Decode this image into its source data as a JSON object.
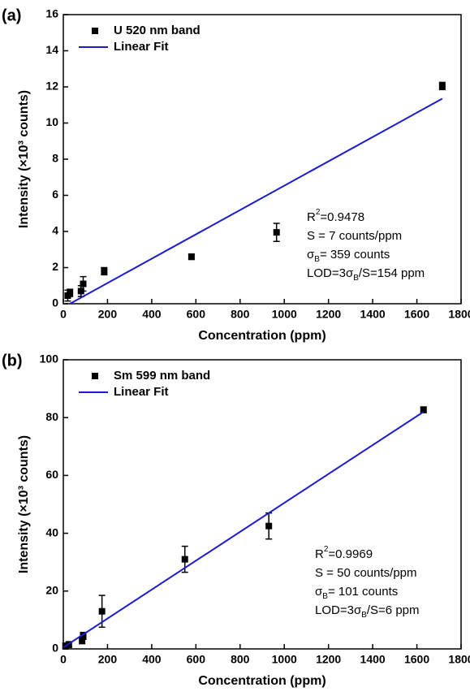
{
  "chart_data": [
    {
      "type": "scatter",
      "panel_label": "(a)",
      "xlabel": "Concentration (ppm)",
      "ylabel": "Intensity (×10³ counts)",
      "xlim": [
        0,
        1800
      ],
      "xticks": [
        0,
        200,
        400,
        600,
        800,
        1000,
        1200,
        1400,
        1600,
        1800
      ],
      "ylim": [
        0,
        16
      ],
      "yticks": [
        0,
        2,
        4,
        6,
        8,
        10,
        12,
        14,
        16
      ],
      "series": [
        {
          "name": "U 520 nm band",
          "color": "#000000",
          "x": [
            20,
            30,
            80,
            90,
            185,
            580,
            965,
            1715
          ],
          "values": [
            0.45,
            0.6,
            0.7,
            1.1,
            1.8,
            2.6,
            3.95,
            12.05
          ],
          "errors": [
            0.3,
            0.2,
            0.3,
            0.4,
            0.2,
            0.15,
            0.5,
            0.2
          ]
        },
        {
          "name": "Linear Fit",
          "type": "line",
          "color": "#1c1ccc",
          "x": [
            30,
            1715
          ],
          "values": [
            0,
            11.35
          ]
        }
      ],
      "annotations": [
        [
          "R",
          "2",
          "=0.9478"
        ],
        [
          "S = 7 counts/ppm"
        ],
        [
          "σ",
          "B",
          "= 359 counts"
        ],
        [
          "LOD=3σ",
          "B",
          "/S=154 ppm"
        ]
      ]
    },
    {
      "type": "scatter",
      "panel_label": "(b)",
      "xlabel": "Concentration (ppm)",
      "ylabel": "Intensity (×10³ counts)",
      "xlim": [
        0,
        1800
      ],
      "xticks": [
        0,
        200,
        400,
        600,
        800,
        1000,
        1200,
        1400,
        1600,
        1800
      ],
      "ylim": [
        0,
        100
      ],
      "yticks": [
        0,
        20,
        40,
        60,
        80,
        100
      ],
      "series": [
        {
          "name": "Sm 599 nm band",
          "color": "#000000",
          "x": [
            10,
            25,
            85,
            90,
            175,
            550,
            930,
            1630
          ],
          "values": [
            1,
            1.5,
            3,
            4.5,
            13,
            31,
            42.5,
            82.7
          ],
          "errors": [
            1,
            1,
            1.2,
            1.2,
            5.5,
            4.5,
            4.5,
            1
          ]
        },
        {
          "name": "Linear Fit",
          "type": "line",
          "color": "#1c1ccc",
          "x": [
            0,
            1630
          ],
          "values": [
            0.5,
            82
          ]
        }
      ],
      "annotations": [
        [
          "R",
          "2",
          "=0.9969"
        ],
        [
          "S = 50 counts/ppm"
        ],
        [
          "σ",
          "B",
          "= 101 counts"
        ],
        [
          "LOD=3σ",
          "B",
          "/S=6 ppm"
        ]
      ]
    }
  ]
}
